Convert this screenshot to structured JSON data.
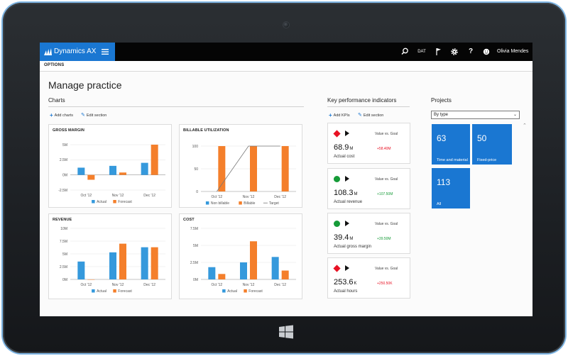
{
  "app": {
    "name": "Dynamics AX",
    "user": "Olivia Mendes",
    "company_code": "DAT"
  },
  "options_bar": {
    "label": "OPTIONS"
  },
  "page": {
    "title": "Manage practice"
  },
  "charts_section": {
    "title": "Charts",
    "add_label": "Add charts",
    "edit_label": "Edit section"
  },
  "kpi_section": {
    "title": "Key performance indicators",
    "add_label": "Add KPIs",
    "edit_label": "Edit section"
  },
  "projects_section": {
    "title": "Projects",
    "filter_value": "By type",
    "tiles": [
      {
        "count": "63",
        "label": "Time and material"
      },
      {
        "count": "50",
        "label": "Fixed-price"
      },
      {
        "count": "113",
        "label": "All"
      }
    ]
  },
  "colors": {
    "accent": "#1a77d2",
    "series_blue": "#3599dc",
    "series_orange": "#f47f2b",
    "red": "#e81123",
    "green": "#169b38"
  },
  "kpis": [
    {
      "status": "red",
      "status_icon": "red-diamond",
      "value": "68.9",
      "unit": "M",
      "name": "Actual cost",
      "comparison": "Value vs. Goal",
      "delta": "+58.40M",
      "delta_color": "#e81123"
    },
    {
      "status": "green",
      "status_icon": "green-circle",
      "value": "108.3",
      "unit": "M",
      "name": "Actual revenue",
      "comparison": "Value vs. Goal",
      "delta": "+107.50M",
      "delta_color": "#169b38"
    },
    {
      "status": "green",
      "status_icon": "green-circle",
      "value": "39.4",
      "unit": "M",
      "name": "Actual gross margin",
      "comparison": "Value vs. Goal",
      "delta": "+39.50M",
      "delta_color": "#169b38"
    },
    {
      "status": "red",
      "status_icon": "red-diamond",
      "value": "253.6",
      "unit": "K",
      "name": "Actual hours",
      "comparison": "Value vs. Goal",
      "delta": "+250.50K",
      "delta_color": "#e81123"
    }
  ],
  "chart_data": [
    {
      "id": "gross-margin",
      "type": "bar",
      "title": "GROSS MARGIN",
      "categories": [
        "Oct '12",
        "Nov '12",
        "Dec '12"
      ],
      "yticks": [
        "5M",
        "2.5M",
        "0M",
        "-2.5M"
      ],
      "ylim": [
        -2.5,
        5
      ],
      "series": [
        {
          "name": "Actual",
          "color": "#3599dc",
          "values": [
            1.2,
            1.5,
            2.0
          ]
        },
        {
          "name": "Forecast",
          "color": "#f47f2b",
          "values": [
            -0.8,
            0.4,
            5.0
          ]
        }
      ],
      "legend": "bottom"
    },
    {
      "id": "billable-utilization",
      "type": "bar",
      "title": "BILLABLE UTILIZATION",
      "categories": [
        "Oct '12",
        "Nov '12",
        "Dec '12"
      ],
      "yticks": [
        "100",
        "50",
        "0"
      ],
      "ylim": [
        0,
        100
      ],
      "series": [
        {
          "name": "Non billable",
          "color": "#3599dc",
          "values": [
            0,
            0,
            0
          ]
        },
        {
          "name": "Billable",
          "color": "#f47f2b",
          "values": [
            100,
            100,
            100
          ]
        }
      ],
      "target": {
        "name": "Target",
        "values": [
          0,
          100,
          100
        ]
      },
      "legend": "bottom"
    },
    {
      "id": "revenue",
      "type": "bar",
      "title": "REVENUE",
      "categories": [
        "Oct '12",
        "Nov '12",
        "Dec '12"
      ],
      "yticks": [
        "10M",
        "7.5M",
        "5M",
        "2.5M",
        "0M"
      ],
      "ylim": [
        0,
        10
      ],
      "series": [
        {
          "name": "Actual",
          "color": "#3599dc",
          "values": [
            3.5,
            5.3,
            6.3
          ]
        },
        {
          "name": "Forecast",
          "color": "#f47f2b",
          "values": [
            0,
            7.0,
            6.3
          ]
        }
      ],
      "legend": "bottom"
    },
    {
      "id": "cost",
      "type": "bar",
      "title": "COST",
      "categories": [
        "Oct '12",
        "Nov '12",
        "Dec '12"
      ],
      "yticks": [
        "7.5M",
        "5M",
        "2.5M",
        "0M"
      ],
      "ylim": [
        0,
        7.5
      ],
      "series": [
        {
          "name": "Actual",
          "color": "#3599dc",
          "values": [
            1.8,
            2.5,
            3.3
          ]
        },
        {
          "name": "Forecast",
          "color": "#f47f2b",
          "values": [
            0.8,
            5.6,
            1.3
          ]
        }
      ],
      "legend": "bottom"
    }
  ]
}
